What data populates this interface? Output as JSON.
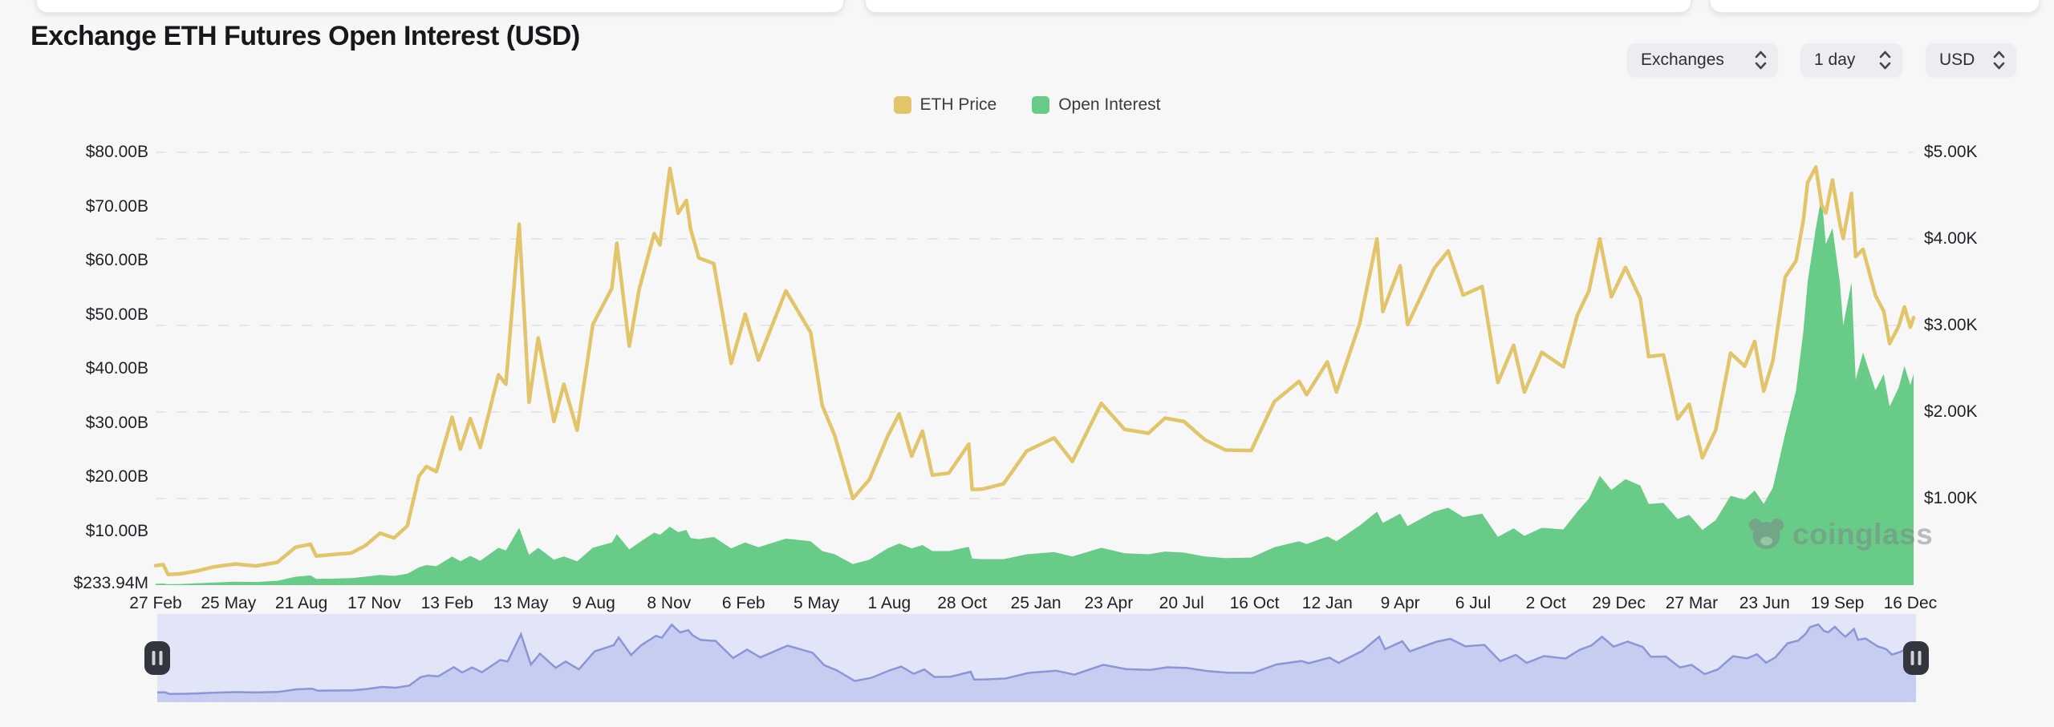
{
  "header": {
    "title": "Exchange ETH Futures Open Interest (USD)"
  },
  "controls": {
    "items": [
      {
        "label": "Exchanges"
      },
      {
        "label": "1 day"
      },
      {
        "label": "USD"
      }
    ]
  },
  "legend": {
    "items": [
      {
        "label": "ETH Price",
        "color": "#e2c46a"
      },
      {
        "label": "Open Interest",
        "color": "#68cb87"
      }
    ]
  },
  "watermark": {
    "text": "coinglass"
  },
  "colors": {
    "page_background": "#f7f7f8",
    "grid": "#e7e7ea",
    "price_line": "#e2c46a",
    "oi_area": "#68cb87",
    "navigator_track": "#e2e5f7",
    "navigator_fill": "#c7cdf0",
    "navigator_line": "#8b96d8",
    "navigator_handle": "#34363f",
    "navigator_handle_bars": "#d2d3d8"
  },
  "chart_data": {
    "type": "line",
    "title": "Exchange ETH Futures Open Interest (USD)",
    "x_range": [
      "2020-02-27",
      "2025-12-20"
    ],
    "grid": "horizontal-dashed",
    "legend_position": "top-center",
    "series": [
      {
        "name": "ETH Price",
        "type": "line",
        "axis": "right",
        "color": "#e2c46a",
        "unit": "USD"
      },
      {
        "name": "Open Interest",
        "type": "area",
        "axis": "left",
        "color": "#68cb87",
        "unit": "USD"
      }
    ],
    "left_axis": {
      "name": "Open Interest (USD)",
      "max": 80,
      "unit": "billion USD",
      "ticks": [
        {
          "label": "$80.00B",
          "value": 80
        },
        {
          "label": "$70.00B",
          "value": 70
        },
        {
          "label": "$60.00B",
          "value": 60
        },
        {
          "label": "$50.00B",
          "value": 50
        },
        {
          "label": "$40.00B",
          "value": 40
        },
        {
          "label": "$30.00B",
          "value": 30
        },
        {
          "label": "$20.00B",
          "value": 20
        },
        {
          "label": "$10.00B",
          "value": 10
        },
        {
          "label": "$233.94M",
          "value": 0.23394
        }
      ]
    },
    "right_axis": {
      "name": "ETH Price (USD)",
      "max": 5000,
      "unit": "USD",
      "ticks": [
        {
          "label": "$5.00K",
          "value": 5000
        },
        {
          "label": "$4.00K",
          "value": 4000
        },
        {
          "label": "$3.00K",
          "value": 3000
        },
        {
          "label": "$2.00K",
          "value": 2000
        },
        {
          "label": "$1.00K",
          "value": 1000
        }
      ]
    },
    "x_ticks": [
      {
        "label": "27 Feb",
        "date": "2020-02-27"
      },
      {
        "label": "25 May",
        "date": "2020-05-25"
      },
      {
        "label": "21 Aug",
        "date": "2020-08-21"
      },
      {
        "label": "17 Nov",
        "date": "2020-11-17"
      },
      {
        "label": "13 Feb",
        "date": "2021-02-13"
      },
      {
        "label": "13 May",
        "date": "2021-05-13"
      },
      {
        "label": "9 Aug",
        "date": "2021-08-09"
      },
      {
        "label": "8 Nov",
        "date": "2021-11-08"
      },
      {
        "label": "6 Feb",
        "date": "2022-02-06"
      },
      {
        "label": "5 May",
        "date": "2022-05-05"
      },
      {
        "label": "1 Aug",
        "date": "2022-08-01"
      },
      {
        "label": "28 Oct",
        "date": "2022-10-28"
      },
      {
        "label": "25 Jan",
        "date": "2023-01-25"
      },
      {
        "label": "23 Apr",
        "date": "2023-04-23"
      },
      {
        "label": "20 Jul",
        "date": "2023-07-20"
      },
      {
        "label": "16 Oct",
        "date": "2023-10-16"
      },
      {
        "label": "12 Jan",
        "date": "2024-01-12"
      },
      {
        "label": "9 Apr",
        "date": "2024-04-09"
      },
      {
        "label": "6 Jul",
        "date": "2024-07-06"
      },
      {
        "label": "2 Oct",
        "date": "2024-10-02"
      },
      {
        "label": "29 Dec",
        "date": "2024-12-29"
      },
      {
        "label": "27 Mar",
        "date": "2025-03-27"
      },
      {
        "label": "23 Jun",
        "date": "2025-06-23"
      },
      {
        "label": "19 Sep",
        "date": "2025-09-19"
      },
      {
        "label": "16 Dec",
        "date": "2025-12-16"
      }
    ],
    "points_format": [
      "date",
      "eth_price_usd",
      "open_interest_billion_usd"
    ],
    "points": [
      [
        "2020-02-27",
        225,
        0.23
      ],
      [
        "2020-03-07",
        238,
        0.3
      ],
      [
        "2020-03-13",
        122,
        0.16
      ],
      [
        "2020-03-28",
        131,
        0.2
      ],
      [
        "2020-04-15",
        160,
        0.33
      ],
      [
        "2020-05-08",
        212,
        0.48
      ],
      [
        "2020-06-02",
        244,
        0.62
      ],
      [
        "2020-06-27",
        221,
        0.58
      ],
      [
        "2020-07-23",
        264,
        0.8
      ],
      [
        "2020-08-14",
        438,
        1.55
      ],
      [
        "2020-09-01",
        472,
        1.8
      ],
      [
        "2020-09-08",
        335,
        1.15
      ],
      [
        "2020-09-26",
        352,
        1.2
      ],
      [
        "2020-10-20",
        370,
        1.3
      ],
      [
        "2020-11-06",
        455,
        1.55
      ],
      [
        "2020-11-24",
        600,
        1.9
      ],
      [
        "2020-12-11",
        545,
        1.7
      ],
      [
        "2020-12-27",
        685,
        2.1
      ],
      [
        "2021-01-10",
        1260,
        3.3
      ],
      [
        "2021-01-19",
        1370,
        3.7
      ],
      [
        "2021-01-31",
        1310,
        3.5
      ],
      [
        "2021-02-19",
        1940,
        5.3
      ],
      [
        "2021-03-01",
        1570,
        4.4
      ],
      [
        "2021-03-13",
        1925,
        5.4
      ],
      [
        "2021-03-25",
        1590,
        4.5
      ],
      [
        "2021-04-16",
        2430,
        6.9
      ],
      [
        "2021-04-25",
        2320,
        6.4
      ],
      [
        "2021-05-11",
        4170,
        10.6
      ],
      [
        "2021-05-23",
        2110,
        5.6
      ],
      [
        "2021-06-03",
        2855,
        6.9
      ],
      [
        "2021-06-22",
        1890,
        4.7
      ],
      [
        "2021-07-04",
        2320,
        5.3
      ],
      [
        "2021-07-20",
        1790,
        4.4
      ],
      [
        "2021-08-08",
        3010,
        6.9
      ],
      [
        "2021-08-31",
        3430,
        7.9
      ],
      [
        "2021-09-06",
        3950,
        9.4
      ],
      [
        "2021-09-21",
        2760,
        6.6
      ],
      [
        "2021-10-03",
        3420,
        7.9
      ],
      [
        "2021-10-21",
        4060,
        9.7
      ],
      [
        "2021-10-28",
        3930,
        9.3
      ],
      [
        "2021-11-09",
        4815,
        10.8
      ],
      [
        "2021-11-19",
        4295,
        9.8
      ],
      [
        "2021-11-29",
        4445,
        10.2
      ],
      [
        "2021-12-04",
        4115,
        8.7
      ],
      [
        "2021-12-14",
        3780,
        8.5
      ],
      [
        "2022-01-01",
        3715,
        8.9
      ],
      [
        "2022-01-22",
        2560,
        6.8
      ],
      [
        "2022-02-08",
        3130,
        7.9
      ],
      [
        "2022-02-24",
        2600,
        7.0
      ],
      [
        "2022-03-29",
        3400,
        8.6
      ],
      [
        "2022-04-28",
        2920,
        8.1
      ],
      [
        "2022-05-12",
        2075,
        6.3
      ],
      [
        "2022-05-27",
        1730,
        5.7
      ],
      [
        "2022-06-18",
        1000,
        3.9
      ],
      [
        "2022-07-08",
        1220,
        4.7
      ],
      [
        "2022-07-30",
        1720,
        6.8
      ],
      [
        "2022-08-13",
        1980,
        7.7
      ],
      [
        "2022-08-28",
        1490,
        6.8
      ],
      [
        "2022-09-10",
        1780,
        7.4
      ],
      [
        "2022-09-22",
        1270,
        6.3
      ],
      [
        "2022-10-12",
        1295,
        6.3
      ],
      [
        "2022-11-05",
        1630,
        7.1
      ],
      [
        "2022-11-09",
        1105,
        4.9
      ],
      [
        "2022-11-22",
        1110,
        4.8
      ],
      [
        "2022-12-17",
        1170,
        4.8
      ],
      [
        "2023-01-14",
        1550,
        5.7
      ],
      [
        "2023-02-16",
        1700,
        6.1
      ],
      [
        "2023-03-10",
        1430,
        5.3
      ],
      [
        "2023-04-14",
        2100,
        6.9
      ],
      [
        "2023-05-12",
        1800,
        5.9
      ],
      [
        "2023-06-10",
        1755,
        5.7
      ],
      [
        "2023-06-30",
        1930,
        6.2
      ],
      [
        "2023-07-23",
        1890,
        6.0
      ],
      [
        "2023-08-17",
        1680,
        5.3
      ],
      [
        "2023-09-11",
        1560,
        5.0
      ],
      [
        "2023-10-12",
        1555,
        5.1
      ],
      [
        "2023-11-09",
        2120,
        7.0
      ],
      [
        "2023-12-09",
        2355,
        8.1
      ],
      [
        "2023-12-18",
        2200,
        7.6
      ],
      [
        "2024-01-12",
        2580,
        9.0
      ],
      [
        "2024-01-23",
        2230,
        8.1
      ],
      [
        "2024-02-20",
        3020,
        11.0
      ],
      [
        "2024-03-12",
        4000,
        13.6
      ],
      [
        "2024-03-19",
        3160,
        11.5
      ],
      [
        "2024-04-09",
        3690,
        13.2
      ],
      [
        "2024-04-18",
        3010,
        10.9
      ],
      [
        "2024-05-20",
        3660,
        13.6
      ],
      [
        "2024-06-06",
        3860,
        14.3
      ],
      [
        "2024-06-24",
        3350,
        12.6
      ],
      [
        "2024-07-17",
        3450,
        13.2
      ],
      [
        "2024-08-05",
        2340,
        8.9
      ],
      [
        "2024-08-24",
        2770,
        10.5
      ],
      [
        "2024-09-06",
        2230,
        9.1
      ],
      [
        "2024-09-27",
        2690,
        10.6
      ],
      [
        "2024-10-23",
        2520,
        10.3
      ],
      [
        "2024-11-09",
        3120,
        13.6
      ],
      [
        "2024-11-23",
        3400,
        16.0
      ],
      [
        "2024-12-06",
        4000,
        20.2
      ],
      [
        "2024-12-20",
        3330,
        17.6
      ],
      [
        "2025-01-06",
        3670,
        19.6
      ],
      [
        "2025-01-24",
        3310,
        18.4
      ],
      [
        "2025-02-03",
        2640,
        15.0
      ],
      [
        "2025-02-21",
        2660,
        15.2
      ],
      [
        "2025-03-10",
        1920,
        12.2
      ],
      [
        "2025-03-24",
        2090,
        13.0
      ],
      [
        "2025-04-09",
        1470,
        10.2
      ],
      [
        "2025-04-25",
        1790,
        12.0
      ],
      [
        "2025-05-13",
        2680,
        16.5
      ],
      [
        "2025-05-30",
        2530,
        15.8
      ],
      [
        "2025-06-11",
        2815,
        17.5
      ],
      [
        "2025-06-22",
        2240,
        15.0
      ],
      [
        "2025-07-03",
        2590,
        18.0
      ],
      [
        "2025-07-18",
        3560,
        28.0
      ],
      [
        "2025-07-31",
        3745,
        36.0
      ],
      [
        "2025-08-09",
        4220,
        47.0
      ],
      [
        "2025-08-14",
        4650,
        56.0
      ],
      [
        "2025-08-24",
        4830,
        66.0
      ],
      [
        "2025-08-31",
        4390,
        72.0
      ],
      [
        "2025-09-05",
        4300,
        63.0
      ],
      [
        "2025-09-13",
        4680,
        66.0
      ],
      [
        "2025-09-22",
        4175,
        56.0
      ],
      [
        "2025-09-26",
        4005,
        48.0
      ],
      [
        "2025-10-06",
        4525,
        56.0
      ],
      [
        "2025-10-11",
        3795,
        38.0
      ],
      [
        "2025-10-20",
        3880,
        43.0
      ],
      [
        "2025-11-04",
        3345,
        36.0
      ],
      [
        "2025-11-14",
        3165,
        39.0
      ],
      [
        "2025-11-21",
        2790,
        33.0
      ],
      [
        "2025-12-02",
        2990,
        36.5
      ],
      [
        "2025-12-09",
        3215,
        40.5
      ],
      [
        "2025-12-16",
        2980,
        37.0
      ],
      [
        "2025-12-20",
        3090,
        39.0
      ]
    ]
  },
  "navigator": {
    "series_shown": "ETH Price",
    "handle_icon": "pause-bars"
  }
}
